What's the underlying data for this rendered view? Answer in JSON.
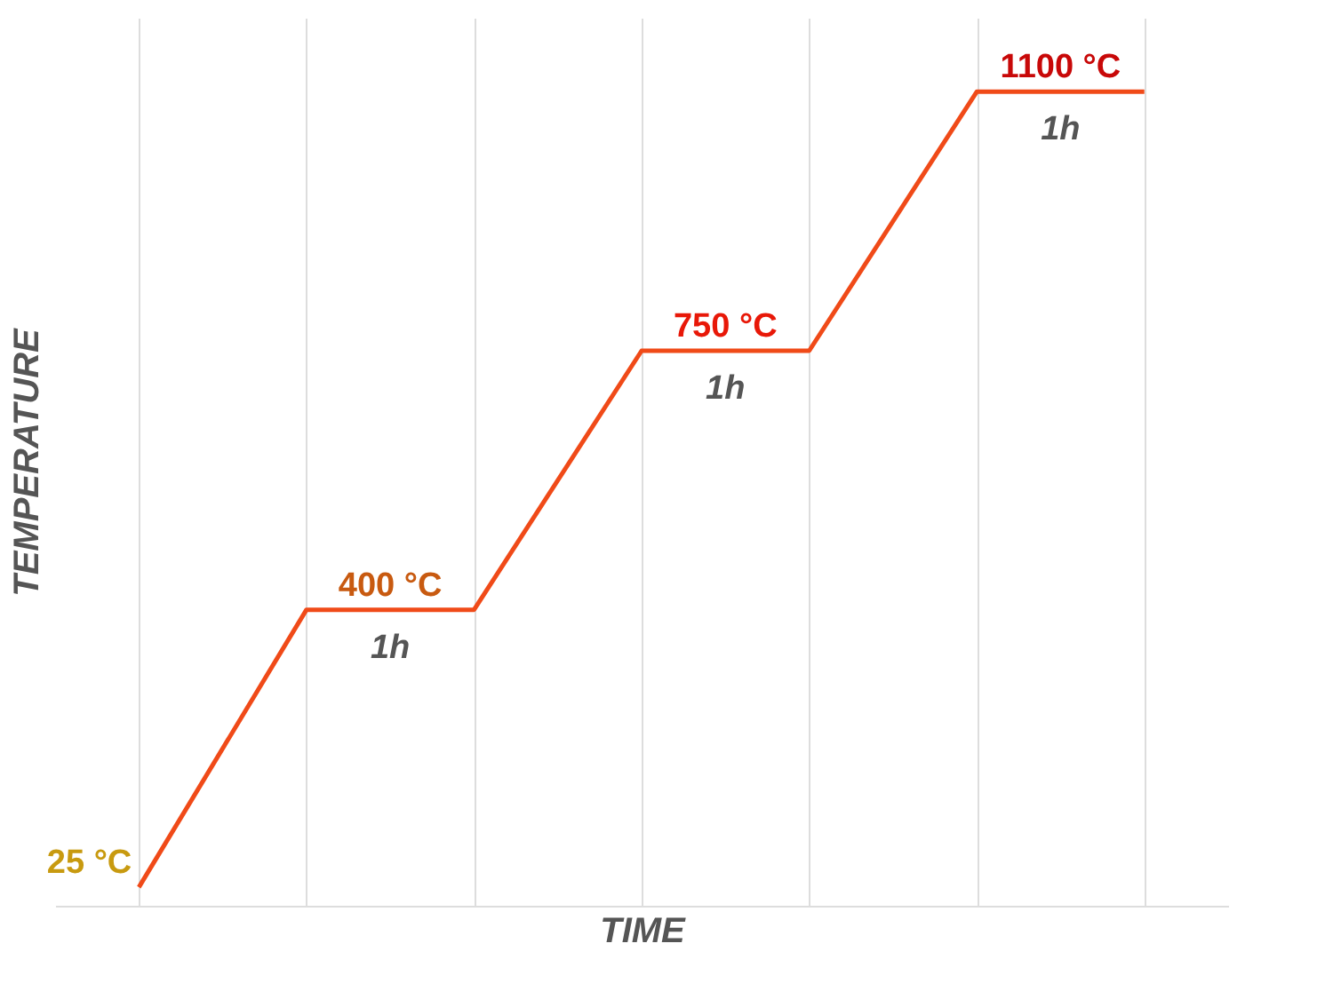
{
  "chart_data": {
    "type": "line",
    "xlabel": "TIME",
    "ylabel": "TEMPERATURE",
    "categories": [
      null,
      null,
      null,
      null,
      null,
      null,
      null
    ],
    "series": [
      {
        "values": [
          25,
          400,
          400,
          750,
          750,
          1100,
          1100
        ],
        "color": "#f04a18",
        "colors": [
          "#c89a10",
          "#c85a10",
          "#c85a10",
          "#e81808",
          "#e81808",
          "#c80808",
          "#c80808"
        ],
        "value_labels": [
          "25 °C",
          "400 °C",
          null,
          "750 °C",
          null,
          "1100 °C",
          null
        ]
      }
    ],
    "annotations": [
      "1h",
      "1h",
      "1h"
    ],
    "ylim": [
      0,
      1200
    ],
    "tick_labels": false,
    "grid": "x"
  }
}
